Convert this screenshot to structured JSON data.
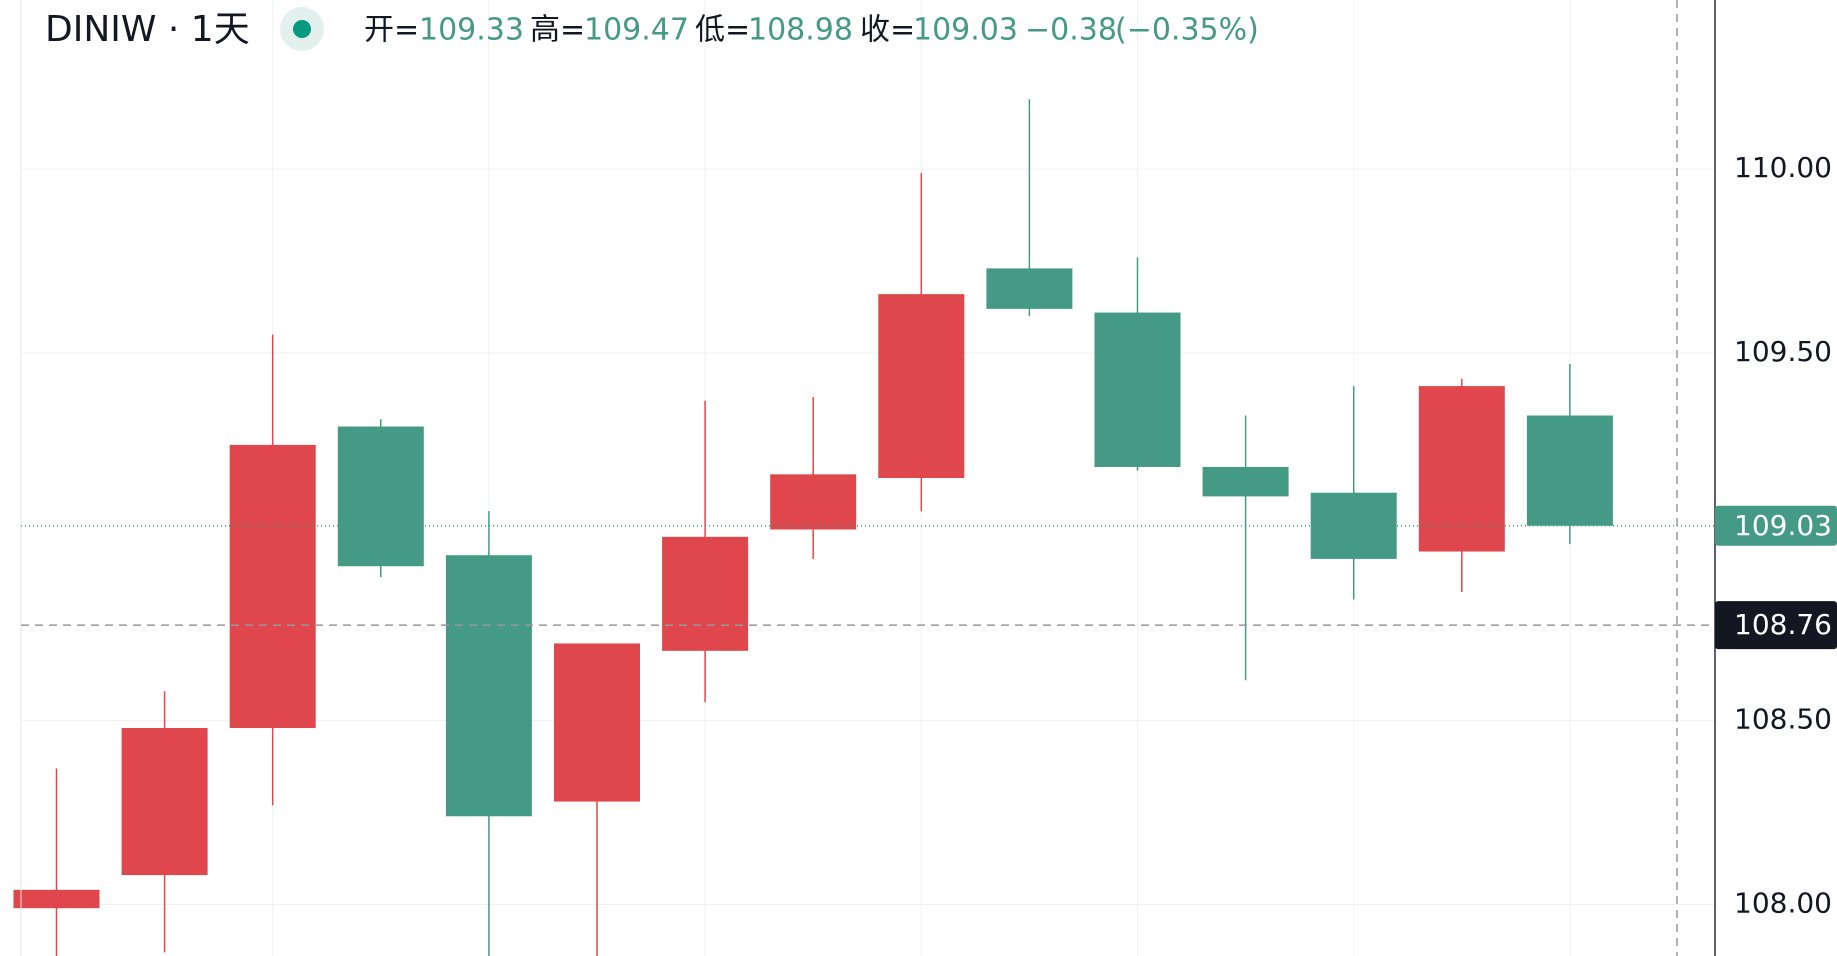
{
  "header": {
    "symbol": "DINIW · 1天",
    "open_label": "开=",
    "open": 109.33,
    "high_label": "高=",
    "high": 109.47,
    "low_label": "低=",
    "low": 108.98,
    "close_label": "收=",
    "close": 109.03,
    "change": "−0.38",
    "change_pct": "(−0.35%)"
  },
  "chart_data": {
    "type": "candlestick",
    "open": [
      107.99,
      108.08,
      108.48,
      109.3,
      108.95,
      108.28,
      108.69,
      109.02,
      109.16,
      109.73,
      109.61,
      109.19,
      109.12,
      108.96,
      109.33
    ],
    "high": [
      108.37,
      108.58,
      109.55,
      109.32,
      109.07,
      108.71,
      109.37,
      109.38,
      109.99,
      110.19,
      109.76,
      109.33,
      109.41,
      109.43,
      109.47
    ],
    "low": [
      107.8,
      107.87,
      108.27,
      108.89,
      107.8,
      107.8,
      108.55,
      108.94,
      109.07,
      109.6,
      109.18,
      108.61,
      108.83,
      108.85,
      108.98
    ],
    "close": [
      108.04,
      108.48,
      109.25,
      108.92,
      108.24,
      108.71,
      109.0,
      109.17,
      109.66,
      109.62,
      109.19,
      109.11,
      108.94,
      109.41,
      109.03
    ],
    "up_color": "#e0474c",
    "down_color": "#459a86",
    "ylim": [
      107.86,
      110.46
    ],
    "yticks": [
      {
        "value": 108,
        "label": "108.00"
      },
      {
        "value": 108.5,
        "label": "108.50"
      },
      {
        "value": 109.5,
        "label": "109.50"
      },
      {
        "value": 110,
        "label": "110.00"
      }
    ],
    "grid": true,
    "last_price": 109.03,
    "crosshair_price": 108.76
  }
}
